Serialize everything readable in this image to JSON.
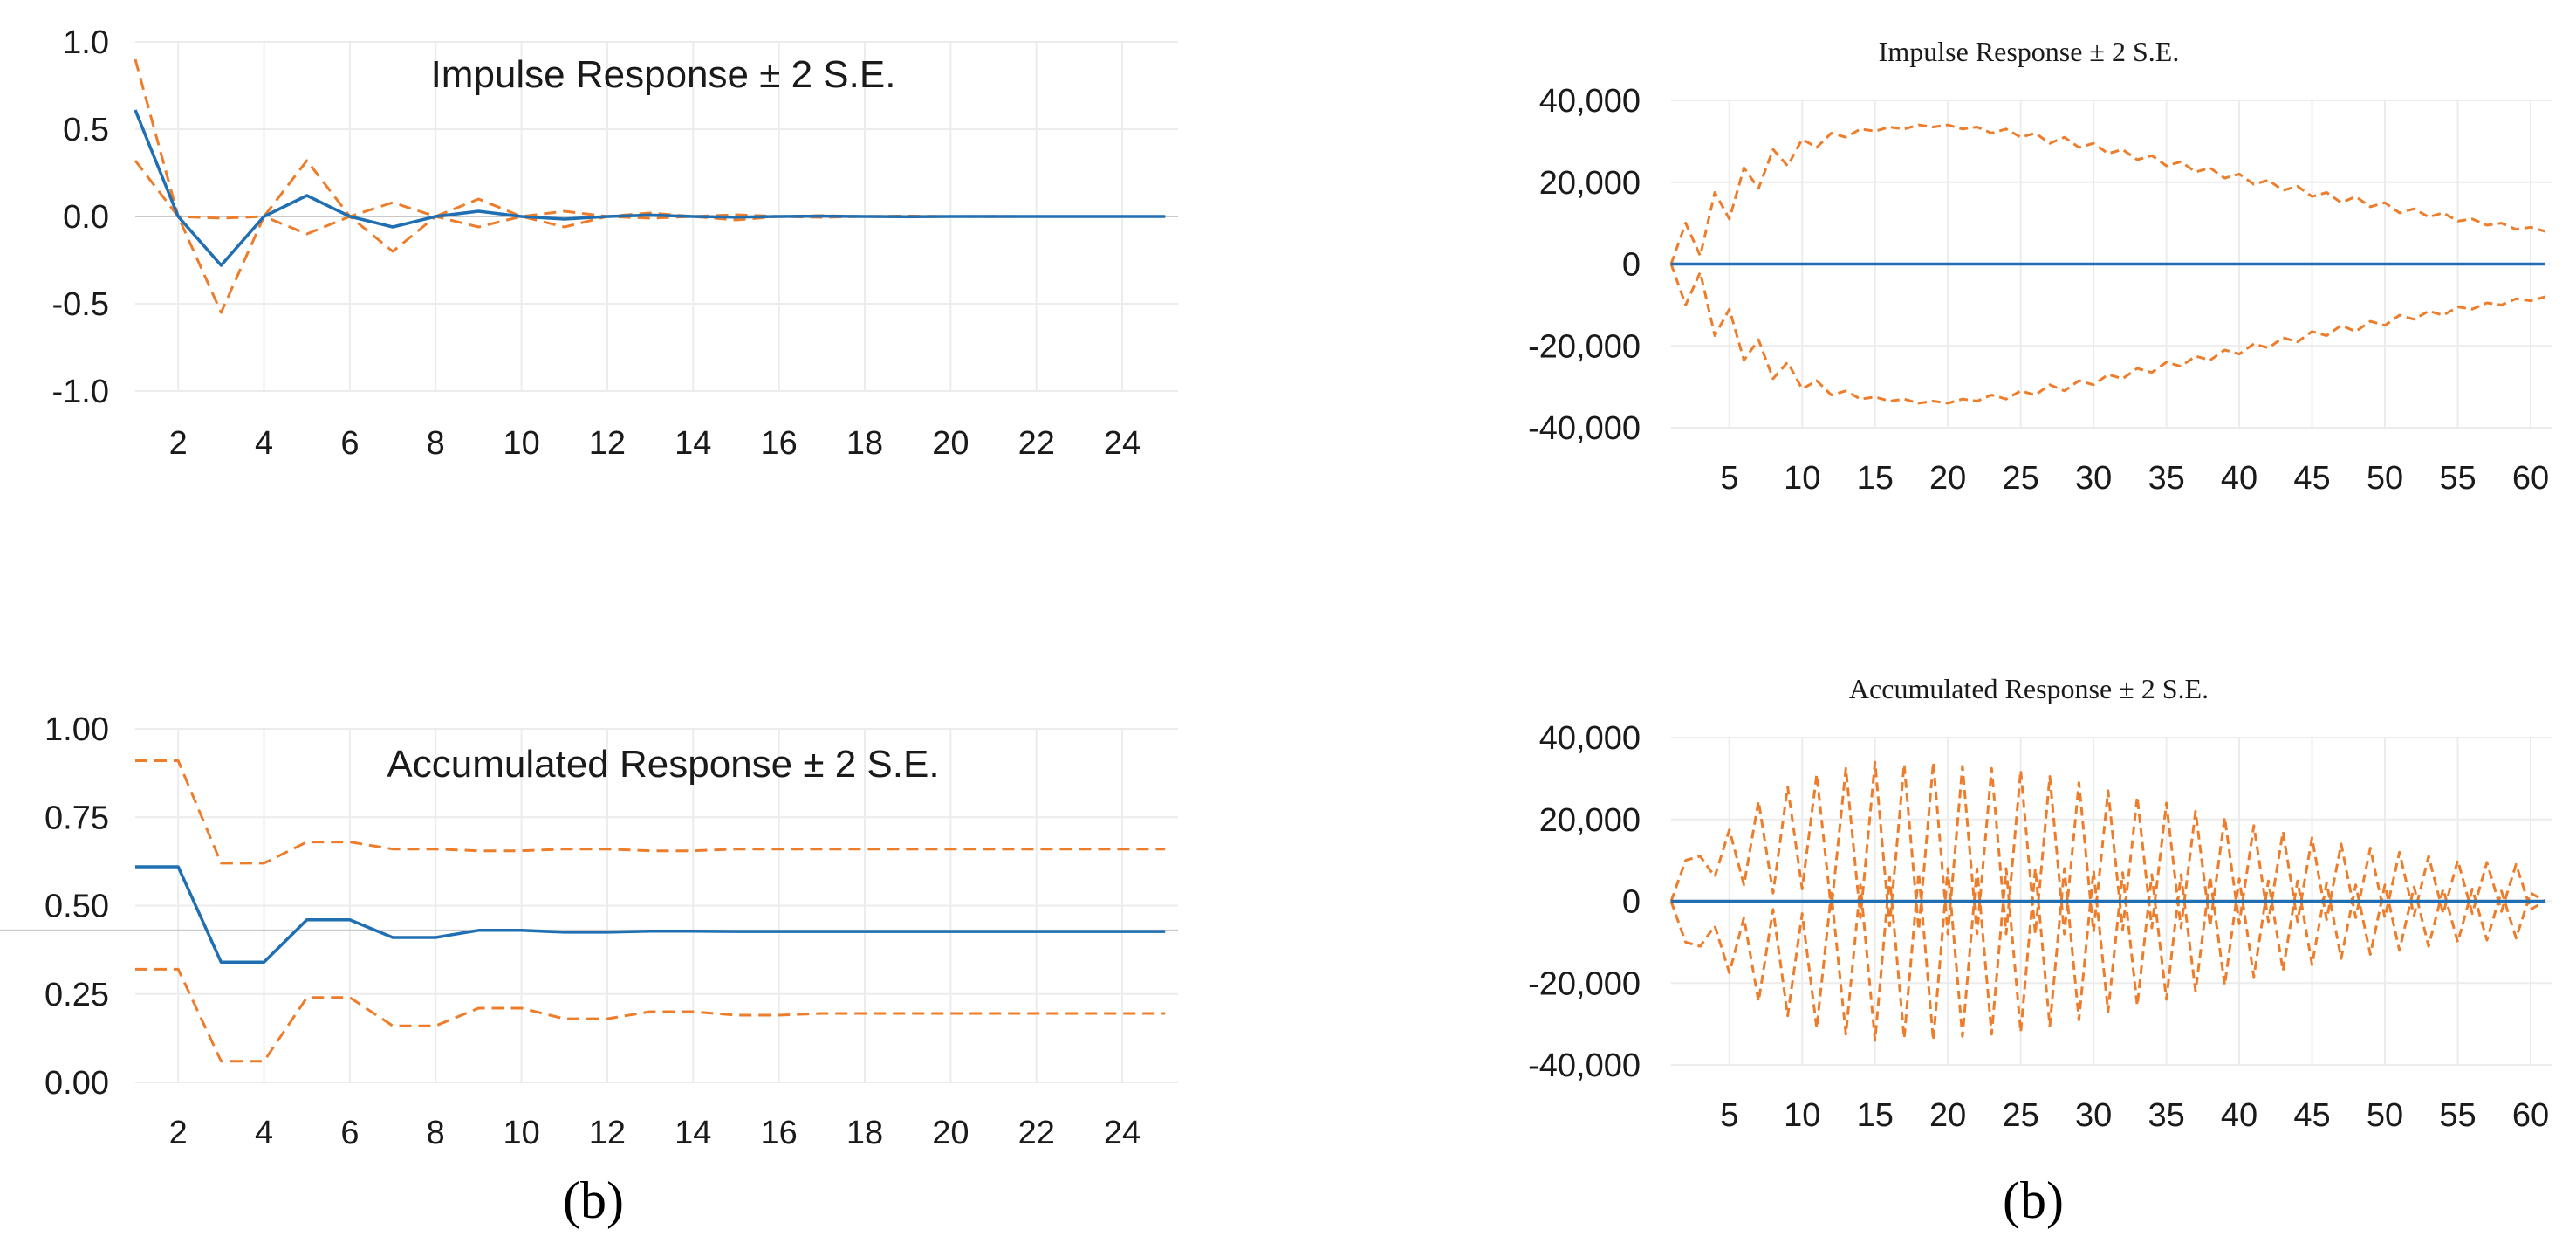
{
  "colors": {
    "response": "#1f6fb2",
    "bands": "#ee7d2b"
  },
  "chart_data": [
    {
      "type": "line",
      "title": "Impulse Response ± 2 S.E.",
      "x": [
        1,
        2,
        3,
        4,
        5,
        6,
        7,
        8,
        9,
        10,
        11,
        12,
        13,
        14,
        15,
        16,
        17,
        18,
        19,
        20,
        21,
        22,
        23,
        24,
        25
      ],
      "ylim": [
        -1.0,
        1.0
      ],
      "yticks": [
        "1.0",
        "0.5",
        "0.0",
        "-0.5",
        "-1.0"
      ],
      "ytick_values": [
        1.0,
        0.5,
        0.0,
        -0.5,
        -1.0
      ],
      "xticks": [
        "2",
        "4",
        "6",
        "8",
        "10",
        "12",
        "14",
        "16",
        "18",
        "20",
        "22",
        "24"
      ],
      "xtick_values": [
        2,
        4,
        6,
        8,
        10,
        12,
        14,
        16,
        18,
        20,
        22,
        24
      ],
      "grid": true,
      "series": [
        {
          "role": "response",
          "values": [
            0.61,
            0.0,
            -0.28,
            0.0,
            0.12,
            0.0,
            -0.06,
            0.0,
            0.03,
            0.0,
            -0.015,
            0.0,
            0.008,
            0.0,
            -0.004,
            0.0,
            0.002,
            0.0,
            -0.001,
            0.0,
            0.0,
            0.0,
            0.0,
            0.0,
            0.0
          ]
        },
        {
          "role": "upper",
          "values": [
            0.9,
            0.0,
            -0.01,
            0.0,
            0.32,
            0.0,
            0.08,
            0.0,
            0.1,
            0.0,
            0.03,
            0.0,
            0.02,
            0.0,
            0.01,
            0.0,
            0.005,
            0.0,
            0.003,
            0.0,
            0.001,
            0.0,
            0.0,
            0.0,
            0.0
          ]
        },
        {
          "role": "lower",
          "values": [
            0.32,
            0.0,
            -0.55,
            0.0,
            -0.1,
            0.0,
            -0.2,
            0.0,
            -0.06,
            0.0,
            -0.06,
            0.0,
            -0.01,
            0.0,
            -0.02,
            0.0,
            -0.005,
            0.0,
            -0.003,
            0.0,
            -0.001,
            0.0,
            0.0,
            0.0,
            0.0
          ]
        }
      ]
    },
    {
      "type": "line",
      "title": "Accumulated Response ± 2 S.E.",
      "x": [
        1,
        2,
        3,
        4,
        5,
        6,
        7,
        8,
        9,
        10,
        11,
        12,
        13,
        14,
        15,
        16,
        17,
        18,
        19,
        20,
        21,
        22,
        23,
        24,
        25
      ],
      "ylim": [
        0.0,
        1.0
      ],
      "yticks": [
        "1.00",
        "0.75",
        "0.50",
        "0.25",
        "0.00"
      ],
      "ytick_values": [
        1.0,
        0.75,
        0.5,
        0.25,
        0.0
      ],
      "xticks": [
        "2",
        "4",
        "6",
        "8",
        "10",
        "12",
        "14",
        "16",
        "18",
        "20",
        "22",
        "24"
      ],
      "xtick_values": [
        2,
        4,
        6,
        8,
        10,
        12,
        14,
        16,
        18,
        20,
        22,
        24
      ],
      "grid": true,
      "baseline": 0.43,
      "series": [
        {
          "role": "response",
          "values": [
            0.61,
            0.61,
            0.34,
            0.34,
            0.46,
            0.46,
            0.41,
            0.41,
            0.43,
            0.43,
            0.425,
            0.425,
            0.428,
            0.428,
            0.427,
            0.427,
            0.427,
            0.427,
            0.427,
            0.427,
            0.427,
            0.427,
            0.427,
            0.427,
            0.427
          ]
        },
        {
          "role": "upper",
          "values": [
            0.91,
            0.91,
            0.62,
            0.62,
            0.68,
            0.68,
            0.66,
            0.66,
            0.655,
            0.655,
            0.66,
            0.66,
            0.655,
            0.655,
            0.66,
            0.66,
            0.66,
            0.66,
            0.66,
            0.66,
            0.66,
            0.66,
            0.66,
            0.66,
            0.66
          ]
        },
        {
          "role": "lower",
          "values": [
            0.32,
            0.32,
            0.06,
            0.06,
            0.24,
            0.24,
            0.16,
            0.16,
            0.21,
            0.21,
            0.18,
            0.18,
            0.2,
            0.2,
            0.19,
            0.19,
            0.195,
            0.195,
            0.195,
            0.195,
            0.195,
            0.195,
            0.195,
            0.195,
            0.195
          ]
        }
      ]
    },
    {
      "type": "line",
      "title": "Impulse Response ± 2 S.E.",
      "x_range": [
        1,
        61
      ],
      "ylim": [
        -40000,
        40000
      ],
      "yticks": [
        "40,000",
        "20,000",
        "0",
        "-20,000",
        "-40,000"
      ],
      "ytick_values": [
        40000,
        20000,
        0,
        -20000,
        -40000
      ],
      "xticks": [
        "5",
        "10",
        "15",
        "20",
        "25",
        "30",
        "35",
        "40",
        "45",
        "50",
        "55",
        "60"
      ],
      "xtick_values": [
        5,
        10,
        15,
        20,
        25,
        30,
        35,
        40,
        45,
        50,
        55,
        60
      ],
      "grid": true,
      "series": [
        {
          "role": "response",
          "values": [
            0,
            0,
            0,
            0,
            0,
            0,
            0,
            0,
            0,
            0,
            0,
            0,
            0,
            0,
            0,
            0,
            0,
            0,
            0,
            0,
            0,
            0,
            0,
            0,
            0,
            0,
            0,
            0,
            0,
            0,
            0,
            0,
            0,
            0,
            0,
            0,
            0,
            0,
            0,
            0,
            0,
            0,
            0,
            0,
            0,
            0,
            0,
            0,
            0,
            0,
            0,
            0,
            0,
            0,
            0,
            0,
            0,
            0,
            0,
            0,
            0
          ]
        },
        {
          "role": "upper",
          "values": [
            0,
            10000,
            2000,
            17500,
            11000,
            23500,
            18500,
            28000,
            24000,
            30500,
            28500,
            32000,
            31000,
            33000,
            32500,
            33500,
            33000,
            34000,
            33500,
            34000,
            33000,
            33500,
            32000,
            33000,
            31000,
            32000,
            29500,
            31000,
            28500,
            29500,
            27000,
            28000,
            25500,
            26500,
            24000,
            25000,
            22500,
            23500,
            21000,
            22000,
            19500,
            20500,
            18000,
            19000,
            16500,
            17500,
            15000,
            16500,
            14000,
            15000,
            12500,
            13500,
            11500,
            12500,
            10500,
            11000,
            9500,
            10000,
            8500,
            9000,
            8000
          ]
        },
        {
          "role": "lower",
          "values": [
            0,
            -10000,
            -2000,
            -17500,
            -11000,
            -23500,
            -18500,
            -28000,
            -24000,
            -30500,
            -28500,
            -32000,
            -31000,
            -33000,
            -32500,
            -33500,
            -33000,
            -34000,
            -33500,
            -34000,
            -33000,
            -33500,
            -32000,
            -33000,
            -31000,
            -32000,
            -29500,
            -31000,
            -28500,
            -29500,
            -27000,
            -28000,
            -25500,
            -26500,
            -24000,
            -25000,
            -22500,
            -23500,
            -21000,
            -22000,
            -19500,
            -20500,
            -18000,
            -19000,
            -16500,
            -17500,
            -15000,
            -16500,
            -14000,
            -15000,
            -12500,
            -13500,
            -11500,
            -12500,
            -10500,
            -11000,
            -9500,
            -10000,
            -8500,
            -9000,
            -8000
          ]
        }
      ]
    },
    {
      "type": "line",
      "title": "Accumulated Response ± 2 S.E.",
      "x_range": [
        1,
        61
      ],
      "ylim": [
        -40000,
        40000
      ],
      "yticks": [
        "40,000",
        "20,000",
        "0",
        "-20,000",
        "-40,000"
      ],
      "ytick_values": [
        40000,
        20000,
        0,
        -20000,
        -40000
      ],
      "xticks": [
        "5",
        "10",
        "15",
        "20",
        "25",
        "30",
        "35",
        "40",
        "45",
        "50",
        "55",
        "60"
      ],
      "xtick_values": [
        5,
        10,
        15,
        20,
        25,
        30,
        35,
        40,
        45,
        50,
        55,
        60
      ],
      "grid": true,
      "series": [
        {
          "role": "response",
          "values": [
            0,
            0,
            0,
            0,
            0,
            0,
            0,
            0,
            0,
            0,
            0,
            0,
            0,
            0,
            0,
            0,
            0,
            0,
            0,
            0,
            0,
            0,
            0,
            0,
            0,
            0,
            0,
            0,
            0,
            0,
            0,
            0,
            0,
            0,
            0,
            0,
            0,
            0,
            0,
            0,
            0,
            0,
            0,
            0,
            0,
            0,
            0,
            0,
            0,
            0,
            0,
            0,
            0,
            0,
            0,
            0,
            0,
            0,
            0,
            0,
            0
          ]
        },
        {
          "role": "upper",
          "values": [
            0,
            10000,
            11000,
            6000,
            17500,
            4000,
            24500,
            2000,
            28000,
            3000,
            31000,
            -2000,
            32500,
            -4000,
            34000,
            -6000,
            33500,
            -7000,
            34000,
            -8000,
            33000,
            -8000,
            32500,
            -8000,
            32000,
            -8000,
            30500,
            -8000,
            29000,
            -7500,
            27000,
            -7000,
            25500,
            -6500,
            24000,
            -6500,
            22000,
            -6000,
            20500,
            -5500,
            18500,
            -5000,
            17000,
            -5000,
            15500,
            -4500,
            14000,
            -4000,
            13000,
            -4000,
            12000,
            -3500,
            11000,
            -3000,
            10000,
            -3000,
            9500,
            -2500,
            9000,
            -2000,
            0
          ]
        },
        {
          "role": "lower",
          "values": [
            0,
            -10000,
            -11000,
            -6000,
            -17500,
            -4000,
            -24500,
            -2000,
            -28000,
            -3000,
            -31000,
            2000,
            -32500,
            4000,
            -34000,
            6000,
            -33500,
            7000,
            -34000,
            8000,
            -33000,
            8000,
            -32500,
            8000,
            -32000,
            8000,
            -30500,
            8000,
            -29000,
            7500,
            -27000,
            7000,
            -25500,
            6500,
            -24000,
            6500,
            -22000,
            6000,
            -20500,
            5500,
            -18500,
            5000,
            -17000,
            5000,
            -15500,
            4500,
            -14000,
            4000,
            -13000,
            4000,
            -12000,
            3500,
            -11000,
            3000,
            -10000,
            3000,
            -9500,
            2500,
            -9000,
            2000,
            0
          ]
        }
      ]
    }
  ],
  "captions": [
    "(b)",
    "(b)"
  ]
}
